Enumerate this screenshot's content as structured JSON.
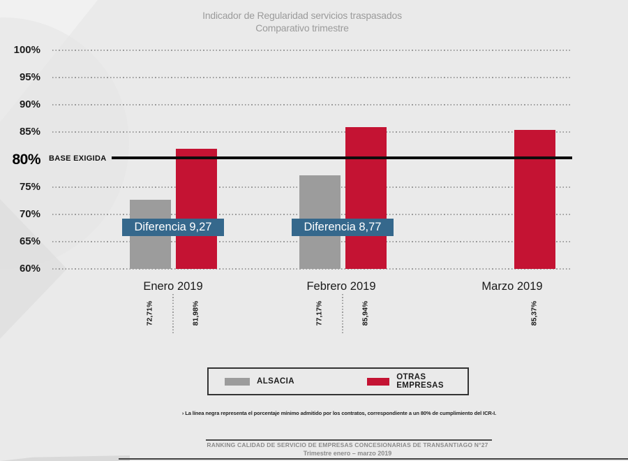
{
  "title": {
    "line1": "Indicador de Regularidad servicios traspasados",
    "line2": "Comparativo trimestre"
  },
  "chart_data": {
    "type": "bar",
    "title": "Indicador de Regularidad servicios traspasados — Comparativo trimestre",
    "categories": [
      "Enero 2019",
      "Febrero 2019",
      "Marzo 2019"
    ],
    "series": [
      {
        "name": "ALSACIA",
        "color": "#9C9C9C",
        "values": [
          72.71,
          77.17,
          null
        ],
        "labels": [
          "72,71%",
          "77,17%",
          null
        ]
      },
      {
        "name": "OTRAS EMPRESAS",
        "color": "#C41333",
        "values": [
          81.98,
          85.94,
          85.37
        ],
        "labels": [
          "81,98%",
          "85,94%",
          "85,37%"
        ]
      }
    ],
    "annotations": [
      {
        "text": "Diferencia 9,27",
        "group": 0
      },
      {
        "text": "Diferencia 8,77",
        "group": 1
      }
    ],
    "annotation_color": "#35688C",
    "baseline": {
      "value": 80,
      "tick": "80%",
      "label": "BASE EXIGIDA",
      "color": "#0C0C0C"
    },
    "y_ticks": [
      "100%",
      "95%",
      "90%",
      "85%",
      "80%",
      "75%",
      "70%",
      "65%",
      "60%"
    ],
    "y_values": [
      100,
      95,
      90,
      85,
      80,
      75,
      70,
      65,
      60
    ],
    "ylim": [
      60,
      100
    ],
    "grid": "dotted-horizontal",
    "legend_position": "bottom"
  },
  "legend": {
    "items": [
      {
        "label": "ALSACIA",
        "color": "#9C9C9C"
      },
      {
        "label": "OTRAS EMPRESAS",
        "color": "#C41333"
      }
    ]
  },
  "footnote": "› La línea negra representa el porcentaje mínimo admitido por los contratos, correspondiente a un 80% de cumplimiento del ICR-I.",
  "footer": {
    "line1": "RANKING CALIDAD DE SERVICIO DE EMPRESAS CONCESIONARIAS DE TRANSANTIAGO  N°27",
    "line2": "Trimestre enero – marzo 2019"
  }
}
